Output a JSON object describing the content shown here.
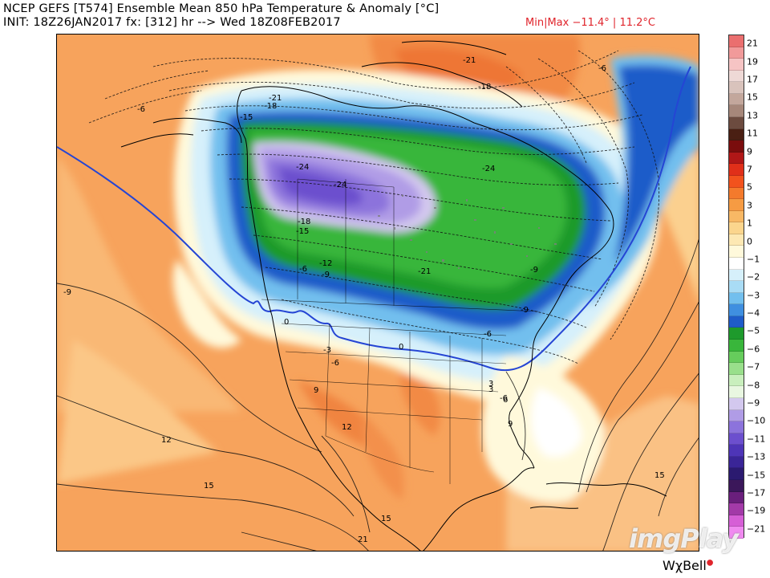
{
  "header": {
    "title": "NCEP GEFS [T574] Ensemble Mean 850 hPa Temperature & Anomaly [°C]",
    "init": "INIT: 18Z26JAN2017 fx: [312] hr --> Wed 18Z08FEB2017",
    "minmax": "Min|Max −11.4° | 11.2°C"
  },
  "colorbar": {
    "labels": [
      "21",
      "19",
      "17",
      "15",
      "13",
      "11",
      "9",
      "7",
      "5",
      "3",
      "1",
      "0",
      "−1",
      "−2",
      "−3",
      "−4",
      "−5",
      "−6",
      "−7",
      "−8",
      "−9",
      "−10",
      "−11",
      "−13",
      "−15",
      "−17",
      "−19",
      "−21"
    ],
    "colors": [
      "#ea6f6f",
      "#f19a9a",
      "#f6c4c4",
      "#eed9d6",
      "#d9c3bc",
      "#c3a79c",
      "#a6877a",
      "#6c4b3f",
      "#4a1f13",
      "#7a0d0d",
      "#b01717",
      "#e02f19",
      "#f2521d",
      "#f47a2c",
      "#f69b43",
      "#f8b865",
      "#fbd58d",
      "#fde8b3",
      "#fff9db",
      "#ffffff",
      "#d6f0fb",
      "#a9dcf5",
      "#72bfee",
      "#3f8fe0",
      "#1f5cc9",
      "#1e9a2c",
      "#39b63b",
      "#66cc5c",
      "#99df8b",
      "#c9efbd",
      "#e9f7e1",
      "#d3c8ee",
      "#b09ce6",
      "#8c73dc",
      "#6c4fce",
      "#4e35b7",
      "#3a2597",
      "#2b1a70",
      "#3b175a",
      "#6a1f7c",
      "#a33aa8",
      "#d65fd6",
      "#f08af0"
    ]
  },
  "map": {
    "contour_labels": [
      "-6",
      "-18",
      "-21",
      "-15",
      "-24",
      "-21",
      "-24",
      "-6",
      "-18",
      "-24",
      "-18",
      "-15",
      "-21",
      "-12",
      "-9",
      "-6",
      "-24",
      "-6",
      "0",
      "0",
      "-3",
      "-6",
      "-9",
      "9",
      "12",
      "15",
      "21",
      "15",
      "12",
      "15",
      "-3",
      "-6",
      "-9",
      "-12",
      "-15",
      "-6",
      "3",
      "6",
      "9",
      "12",
      "15",
      "-18",
      "-21",
      "-24",
      "-9",
      "3",
      "6",
      "0"
    ],
    "label_text": {
      "a": "-6",
      "b": "-18",
      "c": "-21",
      "d": "-15",
      "e": "-24",
      "f": "-24",
      "g": "-6",
      "h": "-18",
      "i": "-15",
      "j": "-21",
      "k": "-12",
      "l": "-9",
      "m": "-6",
      "n": "0",
      "o": "-3",
      "p": "-6",
      "q": "9",
      "r": "12",
      "s": "15",
      "t": "21",
      "u": "15",
      "v": "-9",
      "w": "3",
      "x": "6",
      "y": "-6",
      "z": "12",
      "aa": "15",
      "ab": "-18",
      "ac": "-24",
      "ad": "-21",
      "ae": "-9",
      "af": "3",
      "ag": "9",
      "ah": "-9",
      "ai": "0",
      "aj": "-6"
    }
  },
  "watermark": "imgPlay",
  "brand": "WχBell"
}
